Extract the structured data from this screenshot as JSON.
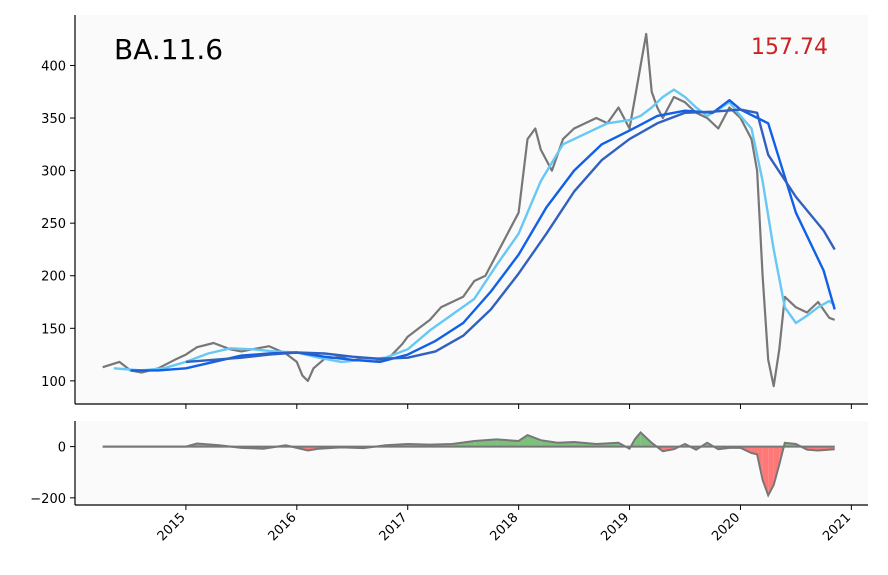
{
  "chart_data": [
    {
      "type": "line",
      "title": "BA.11.6",
      "annotation": "157.74",
      "colors": {
        "price": "#777777",
        "ma_fast": "#66c8f5",
        "ma_mid": "#1060e8",
        "ma_slow": "#3060c0",
        "annotation": "#cc2222",
        "background": "#fafafa"
      },
      "xlim": [
        2014.0,
        2021.15
      ],
      "ylim": [
        78,
        448
      ],
      "yticks": [
        100,
        150,
        200,
        250,
        300,
        350,
        400
      ],
      "ytick_labels": [
        "100",
        "150",
        "200",
        "250",
        "300",
        "350",
        "400"
      ],
      "grid": false,
      "series": [
        {
          "x": [
            2014.25,
            2014.4,
            2014.5,
            2014.6,
            2014.75,
            2014.9,
            2015.0,
            2015.1,
            2015.25,
            2015.4,
            2015.5,
            2015.6,
            2015.75,
            2015.9,
            2016.0,
            2016.05,
            2016.1,
            2016.15,
            2016.25,
            2016.4,
            2016.5,
            2016.6,
            2016.75,
            2016.85,
            2016.95,
            2017.0,
            2017.1,
            2017.2,
            2017.3,
            2017.4,
            2017.5,
            2017.6,
            2017.7,
            2017.75,
            2017.8,
            2017.9,
            2018.0,
            2018.08,
            2018.15,
            2018.2,
            2018.3,
            2018.4,
            2018.5,
            2018.6,
            2018.7,
            2018.8,
            2018.9,
            2019.0,
            2019.05,
            2019.1,
            2019.15,
            2019.2,
            2019.25,
            2019.3,
            2019.4,
            2019.5,
            2019.6,
            2019.7,
            2019.8,
            2019.9,
            2020.0,
            2020.1,
            2020.15,
            2020.2,
            2020.25,
            2020.3,
            2020.35,
            2020.4,
            2020.5,
            2020.6,
            2020.7,
            2020.8,
            2020.85
          ],
          "values": [
            113,
            118,
            110,
            108,
            112,
            120,
            125,
            132,
            136,
            130,
            128,
            130,
            133,
            126,
            118,
            105,
            100,
            112,
            121,
            123,
            119,
            122,
            120,
            124,
            135,
            142,
            150,
            158,
            170,
            175,
            180,
            195,
            200,
            210,
            220,
            240,
            260,
            330,
            340,
            320,
            300,
            330,
            340,
            345,
            350,
            345,
            360,
            340,
            370,
            400,
            430,
            375,
            360,
            350,
            370,
            365,
            355,
            350,
            340,
            360,
            350,
            330,
            300,
            200,
            120,
            95,
            130,
            180,
            170,
            165,
            175,
            160,
            158
          ]
        },
        {
          "x": [
            2014.35,
            2014.6,
            2014.8,
            2015.0,
            2015.2,
            2015.4,
            2015.6,
            2015.8,
            2016.0,
            2016.2,
            2016.4,
            2016.6,
            2016.8,
            2017.0,
            2017.2,
            2017.4,
            2017.6,
            2017.8,
            2018.0,
            2018.2,
            2018.4,
            2018.6,
            2018.8,
            2019.0,
            2019.1,
            2019.2,
            2019.3,
            2019.4,
            2019.5,
            2019.6,
            2019.7,
            2019.8,
            2019.9,
            2020.0,
            2020.1,
            2020.2,
            2020.3,
            2020.4,
            2020.5,
            2020.6,
            2020.7,
            2020.8,
            2020.85
          ],
          "values": [
            112,
            110,
            112,
            118,
            126,
            131,
            130,
            128,
            127,
            122,
            118,
            120,
            122,
            130,
            148,
            163,
            178,
            210,
            240,
            290,
            325,
            335,
            345,
            348,
            352,
            360,
            370,
            377,
            370,
            360,
            352,
            358,
            365,
            352,
            340,
            290,
            225,
            170,
            155,
            162,
            170,
            176,
            172
          ]
        },
        {
          "x": [
            2014.5,
            2014.75,
            2015.0,
            2015.25,
            2015.5,
            2015.75,
            2016.0,
            2016.25,
            2016.5,
            2016.75,
            2017.0,
            2017.25,
            2017.5,
            2017.75,
            2018.0,
            2018.25,
            2018.5,
            2018.75,
            2019.0,
            2019.25,
            2019.5,
            2019.75,
            2019.9,
            2020.0,
            2020.25,
            2020.5,
            2020.75,
            2020.85
          ],
          "values": [
            110,
            110,
            112,
            118,
            124,
            126,
            127,
            123,
            120,
            118,
            125,
            138,
            155,
            185,
            220,
            265,
            300,
            325,
            338,
            352,
            357,
            355,
            367,
            358,
            345,
            260,
            205,
            168
          ]
        },
        {
          "x": [
            2015.0,
            2015.25,
            2015.5,
            2015.75,
            2016.0,
            2016.25,
            2016.5,
            2016.75,
            2017.0,
            2017.25,
            2017.5,
            2017.75,
            2018.0,
            2018.25,
            2018.5,
            2018.75,
            2019.0,
            2019.25,
            2019.5,
            2019.75,
            2020.0,
            2020.15,
            2020.25,
            2020.5,
            2020.75,
            2020.85
          ],
          "values": [
            118,
            120,
            122,
            125,
            127,
            126,
            123,
            121,
            122,
            128,
            143,
            168,
            202,
            240,
            280,
            310,
            330,
            345,
            355,
            356,
            358,
            355,
            315,
            275,
            243,
            225
          ]
        }
      ]
    },
    {
      "type": "area",
      "xticks": [
        2015,
        2016,
        2017,
        2018,
        2019,
        2020,
        2021
      ],
      "xtick_labels": [
        "2015",
        "2016",
        "2017",
        "2018",
        "2019",
        "2020",
        "2021"
      ],
      "xlim": [
        2014.0,
        2021.15
      ],
      "ylim": [
        -228,
        100
      ],
      "yticks": [
        0,
        -200
      ],
      "ytick_labels": [
        "0",
        "−200"
      ],
      "colors": {
        "line": "#777777",
        "positive": "#7cc07c",
        "negative": "#ff7878",
        "background": "#fafafa"
      },
      "series": [
        {
          "x": [
            2014.25,
            2015.0,
            2015.1,
            2015.3,
            2015.5,
            2015.7,
            2015.9,
            2016.0,
            2016.1,
            2016.2,
            2016.4,
            2016.6,
            2016.8,
            2017.0,
            2017.2,
            2017.4,
            2017.6,
            2017.8,
            2018.0,
            2018.08,
            2018.2,
            2018.35,
            2018.5,
            2018.7,
            2018.9,
            2019.0,
            2019.05,
            2019.1,
            2019.2,
            2019.3,
            2019.4,
            2019.5,
            2019.6,
            2019.7,
            2019.8,
            2019.9,
            2020.0,
            2020.1,
            2020.15,
            2020.2,
            2020.25,
            2020.3,
            2020.35,
            2020.4,
            2020.5,
            2020.6,
            2020.7,
            2020.85
          ],
          "values": [
            0,
            0,
            12,
            5,
            -5,
            -8,
            5,
            -5,
            -15,
            -8,
            -3,
            -6,
            5,
            10,
            8,
            10,
            22,
            28,
            22,
            45,
            25,
            15,
            18,
            10,
            15,
            -8,
            30,
            55,
            15,
            -18,
            -10,
            10,
            -12,
            15,
            -10,
            -5,
            -5,
            -25,
            -30,
            -130,
            -190,
            -150,
            -70,
            15,
            10,
            -12,
            -15,
            -10
          ]
        }
      ]
    }
  ]
}
